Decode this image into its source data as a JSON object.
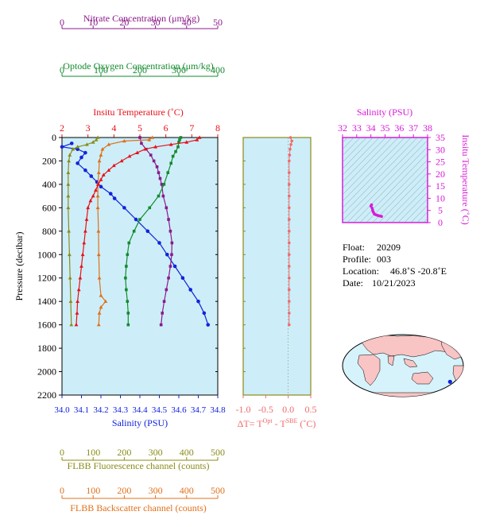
{
  "colors": {
    "nitrate": "#8b1a8b",
    "oxygen": "#138a2e",
    "temperature": "#e8111a",
    "salinity": "#1122dd",
    "fluorescence": "#8b8b1a",
    "backscatter": "#e0701a",
    "delta_t": "#f06a6a",
    "panel_bg": "#cdeef8",
    "ts_frame": "#d81ad8"
  },
  "info": {
    "float_label": "Float:",
    "float_value": "20209",
    "profile_label": "Profile:",
    "profile_value": "003",
    "location_label": "Location:",
    "location_value": "46.8˚S  -20.8˚E",
    "date_label": "Date:",
    "date_value": "10/21/2023"
  },
  "chart_data": [
    {
      "type": "line",
      "name": "main-profile",
      "ylabel": "Pressure (decibar)",
      "ylim": [
        2200,
        0
      ],
      "yticks": [
        "0",
        "200",
        "400",
        "600",
        "800",
        "1000",
        "1200",
        "1400",
        "1600",
        "1800",
        "2000",
        "2200"
      ],
      "axes": {
        "nitrate": {
          "label": "Nitrate Concentration (μm/kg)",
          "range": [
            0,
            50
          ],
          "ticks": [
            "0",
            "10",
            "20",
            "30",
            "40",
            "50"
          ]
        },
        "oxygen": {
          "label": "Optode Oxygen Concentration (μm/kg)",
          "range": [
            0,
            400
          ],
          "ticks": [
            "0",
            "100",
            "200",
            "300",
            "400"
          ]
        },
        "temperature": {
          "label": "Insitu Temperature (˚C)",
          "range": [
            2,
            8
          ],
          "ticks": [
            "2",
            "3",
            "4",
            "5",
            "6",
            "7",
            "8"
          ]
        },
        "salinity": {
          "label": "Salinity (PSU)",
          "range": [
            34.0,
            34.8
          ],
          "ticks": [
            "34.0",
            "34.1",
            "34.2",
            "34.3",
            "34.4",
            "34.5",
            "34.6",
            "34.7",
            "34.8"
          ]
        },
        "fluorescence": {
          "label": "FLBB Fluorescence channel (counts)",
          "range": [
            0,
            500
          ],
          "ticks": [
            "0",
            "100",
            "200",
            "300",
            "400",
            "500"
          ]
        },
        "backscatter": {
          "label": "FLBB Backscatter channel (counts)",
          "range": [
            0,
            500
          ],
          "ticks": [
            "0",
            "100",
            "200",
            "300",
            "400",
            "500"
          ]
        }
      },
      "series": {
        "temperature": [
          [
            7.3,
            0
          ],
          [
            7.2,
            20
          ],
          [
            6.8,
            40
          ],
          [
            6.2,
            60
          ],
          [
            5.6,
            80
          ],
          [
            5.2,
            100
          ],
          [
            4.9,
            130
          ],
          [
            4.6,
            160
          ],
          [
            4.3,
            200
          ],
          [
            4.0,
            240
          ],
          [
            3.8,
            280
          ],
          [
            3.6,
            320
          ],
          [
            3.5,
            360
          ],
          [
            3.4,
            400
          ],
          [
            3.3,
            450
          ],
          [
            3.2,
            500
          ],
          [
            3.1,
            540
          ],
          [
            3.0,
            600
          ],
          [
            2.95,
            700
          ],
          [
            2.9,
            800
          ],
          [
            2.85,
            900
          ],
          [
            2.8,
            1000
          ],
          [
            2.75,
            1100
          ],
          [
            2.7,
            1200
          ],
          [
            2.65,
            1300
          ],
          [
            2.6,
            1400
          ],
          [
            2.58,
            1500
          ],
          [
            2.55,
            1600
          ]
        ],
        "salinity": [
          [
            34.05,
            50
          ],
          [
            34.0,
            80
          ],
          [
            34.08,
            100
          ],
          [
            34.12,
            130
          ],
          [
            34.1,
            170
          ],
          [
            34.08,
            220
          ],
          [
            34.12,
            280
          ],
          [
            34.15,
            330
          ],
          [
            34.18,
            380
          ],
          [
            34.2,
            420
          ],
          [
            34.25,
            480
          ],
          [
            34.27,
            520
          ],
          [
            34.32,
            600
          ],
          [
            34.38,
            700
          ],
          [
            34.44,
            800
          ],
          [
            34.5,
            900
          ],
          [
            34.54,
            1000
          ],
          [
            34.58,
            1100
          ],
          [
            34.62,
            1200
          ],
          [
            34.66,
            1300
          ],
          [
            34.7,
            1400
          ],
          [
            34.73,
            1500
          ],
          [
            34.75,
            1600
          ]
        ],
        "oxygen": [
          [
            305,
            0
          ],
          [
            302,
            20
          ],
          [
            300,
            40
          ],
          [
            298,
            80
          ],
          [
            292,
            120
          ],
          [
            285,
            160
          ],
          [
            280,
            220
          ],
          [
            272,
            300
          ],
          [
            262,
            400
          ],
          [
            248,
            500
          ],
          [
            225,
            600
          ],
          [
            200,
            700
          ],
          [
            185,
            800
          ],
          [
            172,
            900
          ],
          [
            168,
            1000
          ],
          [
            165,
            1100
          ],
          [
            163,
            1200
          ],
          [
            165,
            1300
          ],
          [
            168,
            1400
          ],
          [
            170,
            1500
          ],
          [
            170,
            1600
          ]
        ],
        "nitrate": [
          [
            25,
            0
          ],
          [
            25.5,
            50
          ],
          [
            27,
            100
          ],
          [
            28.5,
            150
          ],
          [
            29.5,
            200
          ],
          [
            30.5,
            250
          ],
          [
            31,
            300
          ],
          [
            31.5,
            350
          ],
          [
            32,
            400
          ],
          [
            32.5,
            500
          ],
          [
            33.5,
            600
          ],
          [
            34.2,
            700
          ],
          [
            34.8,
            800
          ],
          [
            35.3,
            900
          ],
          [
            35.2,
            1000
          ],
          [
            34.8,
            1100
          ],
          [
            34.2,
            1200
          ],
          [
            33.5,
            1300
          ],
          [
            32.8,
            1400
          ],
          [
            32.2,
            1500
          ],
          [
            31.8,
            1600
          ]
        ],
        "fluorescence": [
          [
            115,
            0
          ],
          [
            110,
            20
          ],
          [
            100,
            40
          ],
          [
            80,
            60
          ],
          [
            50,
            80
          ],
          [
            35,
            100
          ],
          [
            25,
            150
          ],
          [
            22,
            200
          ],
          [
            20,
            300
          ],
          [
            20,
            400
          ],
          [
            20,
            500
          ],
          [
            20,
            600
          ],
          [
            22,
            800
          ],
          [
            24,
            1000
          ],
          [
            26,
            1200
          ],
          [
            28,
            1400
          ],
          [
            30,
            1600
          ]
        ],
        "backscatter": [
          [
            290,
            0
          ],
          [
            280,
            20
          ],
          [
            200,
            30
          ],
          [
            150,
            60
          ],
          [
            130,
            100
          ],
          [
            125,
            150
          ],
          [
            120,
            200
          ],
          [
            118,
            300
          ],
          [
            115,
            400
          ],
          [
            115,
            500
          ],
          [
            115,
            600
          ],
          [
            117,
            800
          ],
          [
            118,
            1000
          ],
          [
            120,
            1200
          ],
          [
            125,
            1350
          ],
          [
            140,
            1400
          ],
          [
            125,
            1450
          ],
          [
            120,
            1500
          ],
          [
            118,
            1600
          ]
        ]
      }
    },
    {
      "type": "scatter",
      "name": "delta-t",
      "xlabel": "ΔT= T",
      "xlabel_sup1": "Opt",
      "xlabel_mid": " - T",
      "xlabel_sup2": "SBE",
      "xlabel_unit": " (˚C)",
      "xlim": [
        -1.0,
        0.5
      ],
      "xticks": [
        "-1.0",
        "-0.5",
        "0.0",
        "0.5"
      ],
      "values": [
        [
          0.05,
          0
        ],
        [
          0.08,
          30
        ],
        [
          0.06,
          60
        ],
        [
          0.04,
          100
        ],
        [
          0.03,
          150
        ],
        [
          0.02,
          200
        ],
        [
          0.02,
          300
        ],
        [
          0.02,
          400
        ],
        [
          0.02,
          500
        ],
        [
          0.02,
          600
        ],
        [
          0.02,
          700
        ],
        [
          0.02,
          800
        ],
        [
          0.02,
          900
        ],
        [
          0.02,
          1000
        ],
        [
          0.02,
          1100
        ],
        [
          0.02,
          1200
        ],
        [
          0.02,
          1300
        ],
        [
          0.02,
          1400
        ],
        [
          0.02,
          1500
        ],
        [
          0.02,
          1600
        ]
      ]
    },
    {
      "type": "scatter",
      "name": "ts-diagram",
      "xlabel": "Salinity (PSU)",
      "ylabel": "Insitu Temperature (˚C)",
      "xlim": [
        32,
        38
      ],
      "ylim": [
        0,
        35
      ],
      "xticks": [
        "32",
        "33",
        "34",
        "35",
        "36",
        "37",
        "38"
      ],
      "yticks": [
        "0",
        "5",
        "10",
        "15",
        "20",
        "25",
        "30",
        "35"
      ],
      "values": [
        [
          34.05,
          7.3
        ],
        [
          34.0,
          6.8
        ],
        [
          34.08,
          6.0
        ],
        [
          34.12,
          5.2
        ],
        [
          34.15,
          4.6
        ],
        [
          34.2,
          4.0
        ],
        [
          34.25,
          3.5
        ],
        [
          34.35,
          3.2
        ],
        [
          34.45,
          3.0
        ],
        [
          34.55,
          2.8
        ],
        [
          34.65,
          2.7
        ],
        [
          34.75,
          2.55
        ]
      ]
    },
    {
      "type": "map",
      "name": "location-map",
      "marker_lat": -46.8,
      "marker_lon": -20.8
    }
  ]
}
